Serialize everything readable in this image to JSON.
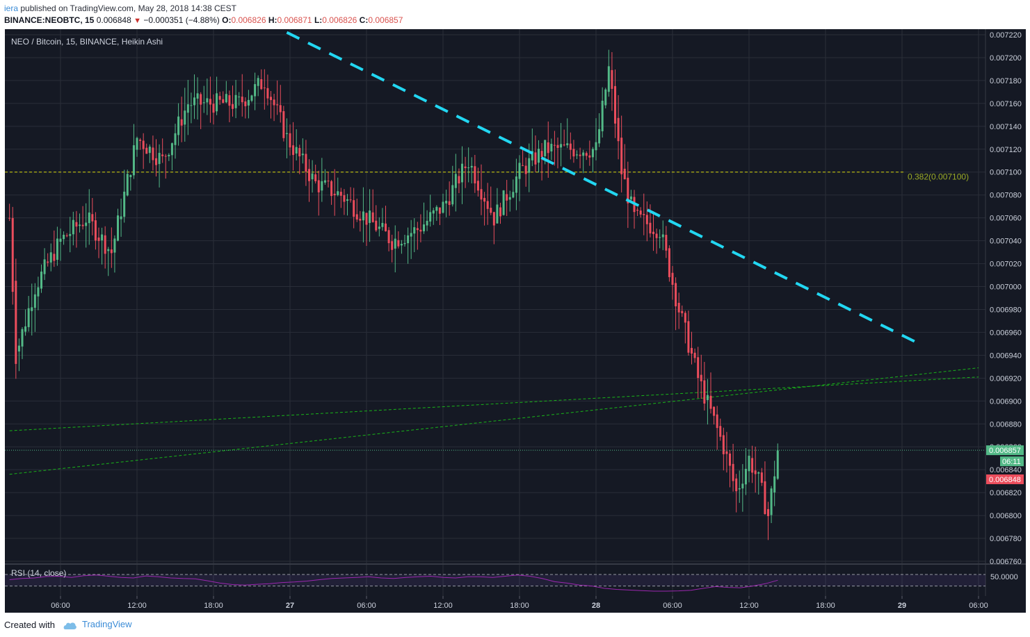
{
  "header": {
    "author": "iera",
    "published_text": "published on TradingView.com, May 28, 2018 14:38 CEST",
    "symbol_line": "BINANCE:NEOBTC, 15",
    "last": "0.006848",
    "down_arrow": "▼",
    "change": "−0.000351 (−4.88%)",
    "o_label": "O:",
    "o_value": "0.006826",
    "h_label": "H:",
    "h_value": "0.006871",
    "l_label": "L:",
    "l_value": "0.006826",
    "c_label": "C:",
    "c_value": "0.006857"
  },
  "footer": {
    "created_with": "Created with",
    "brand": "TradingView",
    "brand_icon": "cloud-icon"
  },
  "colors": {
    "background": "#151924",
    "grid": "#2a2e39",
    "up": "#53b987",
    "down": "#eb4d5c",
    "trend_cyan": "#22d7f2",
    "channel_green": "#19b519",
    "fib_yellow": "#d6d60a",
    "fib_label": "#9aaa26",
    "rsi_line": "#9c27b0",
    "axis_text": "#ccd1dc"
  },
  "chart_data": {
    "type": "candlestick",
    "title": "NEO / Bitcoin, 15, BINANCE, Heikin Ashi",
    "interval": "15",
    "candle_style": "Heikin Ashi",
    "y_ticks": [
      "0.006760",
      "0.006780",
      "0.006800",
      "0.006820",
      "0.006840",
      "0.006860",
      "0.006880",
      "0.006900",
      "0.006920",
      "0.006940",
      "0.006960",
      "0.006980",
      "0.007000",
      "0.007020",
      "0.007040",
      "0.007060",
      "0.007080",
      "0.007100",
      "0.007120",
      "0.007140",
      "0.007160",
      "0.007180",
      "0.007200",
      "0.007220"
    ],
    "ylim": [
      0.00676,
      0.00722
    ],
    "x_ticks": [
      "06:00",
      "12:00",
      "18:00",
      "27",
      "06:00",
      "12:00",
      "18:00",
      "28",
      "06:00",
      "12:00",
      "18:00",
      "29",
      "06:00"
    ],
    "last_price": {
      "value": "0.006857",
      "countdown": "06:11"
    },
    "bid_price": {
      "value": "0.006848"
    },
    "fib_level": {
      "label": "0.382(0.007100)",
      "value": 0.0071
    },
    "trend_line_dashed": {
      "from": {
        "x": "26 23:45",
        "y": 0.007222
      },
      "to": {
        "x": "29 01:00",
        "y": 0.006952
      }
    },
    "channel_lines": [
      {
        "from": {
          "x": "26 02:00",
          "y": 0.006874
        },
        "to": {
          "x": "29 06:00",
          "y": 0.006921
        }
      },
      {
        "from": {
          "x": "26 02:00",
          "y": 0.006836
        },
        "to": {
          "x": "29 06:00",
          "y": 0.006929
        }
      }
    ],
    "candles_approx": [
      {
        "t": "26 02:00",
        "price": 0.00706
      },
      {
        "t": "26 02:30",
        "price": 0.00694
      },
      {
        "t": "26 04:00",
        "price": 0.007
      },
      {
        "t": "26 06:00",
        "price": 0.00704
      },
      {
        "t": "26 08:00",
        "price": 0.00706
      },
      {
        "t": "26 10:00",
        "price": 0.00703
      },
      {
        "t": "26 12:00",
        "price": 0.00713
      },
      {
        "t": "26 14:00",
        "price": 0.00711
      },
      {
        "t": "26 16:00",
        "price": 0.00716
      },
      {
        "t": "26 18:00",
        "price": 0.00716
      },
      {
        "t": "26 20:00",
        "price": 0.00716
      },
      {
        "t": "26 22:00",
        "price": 0.00718
      },
      {
        "t": "26 23:45",
        "price": 0.00713
      },
      {
        "t": "27 02:00",
        "price": 0.00709
      },
      {
        "t": "27 04:00",
        "price": 0.00708
      },
      {
        "t": "27 06:00",
        "price": 0.00706
      },
      {
        "t": "27 08:00",
        "price": 0.00704
      },
      {
        "t": "27 10:00",
        "price": 0.00705
      },
      {
        "t": "27 12:00",
        "price": 0.00707
      },
      {
        "t": "27 14:00",
        "price": 0.00711
      },
      {
        "t": "27 16:00",
        "price": 0.00706
      },
      {
        "t": "27 18:00",
        "price": 0.0071
      },
      {
        "t": "27 20:00",
        "price": 0.00712
      },
      {
        "t": "27 22:00",
        "price": 0.00712
      },
      {
        "t": "28 00:00",
        "price": 0.00712
      },
      {
        "t": "28 01:00",
        "price": 0.00719
      },
      {
        "t": "28 02:00",
        "price": 0.0071
      },
      {
        "t": "28 03:00",
        "price": 0.00706
      },
      {
        "t": "28 05:00",
        "price": 0.00705
      },
      {
        "t": "28 06:30",
        "price": 0.00698
      },
      {
        "t": "28 08:00",
        "price": 0.00692
      },
      {
        "t": "28 09:00",
        "price": 0.00689
      },
      {
        "t": "28 10:00",
        "price": 0.00686
      },
      {
        "t": "28 11:00",
        "price": 0.00682
      },
      {
        "t": "28 12:00",
        "price": 0.00685
      },
      {
        "t": "28 12:45",
        "price": 0.00683
      },
      {
        "t": "28 13:30",
        "price": 0.0068
      },
      {
        "t": "28 14:15",
        "price": 0.006857
      }
    ],
    "rsi": {
      "label": "RSI (14, close)",
      "tick": "50.0000",
      "upper": 70,
      "lower": 30,
      "values_approx": [
        52,
        56,
        58,
        63,
        64,
        60,
        66,
        68,
        64,
        60,
        58,
        65,
        62,
        58,
        56,
        55,
        48,
        40,
        35,
        33,
        36,
        38,
        42,
        44,
        47,
        52,
        56,
        58,
        60,
        62,
        58,
        56,
        60,
        62,
        64,
        60,
        58,
        62,
        62,
        60,
        64,
        68,
        64,
        56,
        45,
        40,
        33,
        30,
        22,
        18,
        16,
        14,
        12,
        12,
        13,
        15,
        22,
        28,
        25,
        24,
        30,
        38,
        50
      ]
    }
  }
}
